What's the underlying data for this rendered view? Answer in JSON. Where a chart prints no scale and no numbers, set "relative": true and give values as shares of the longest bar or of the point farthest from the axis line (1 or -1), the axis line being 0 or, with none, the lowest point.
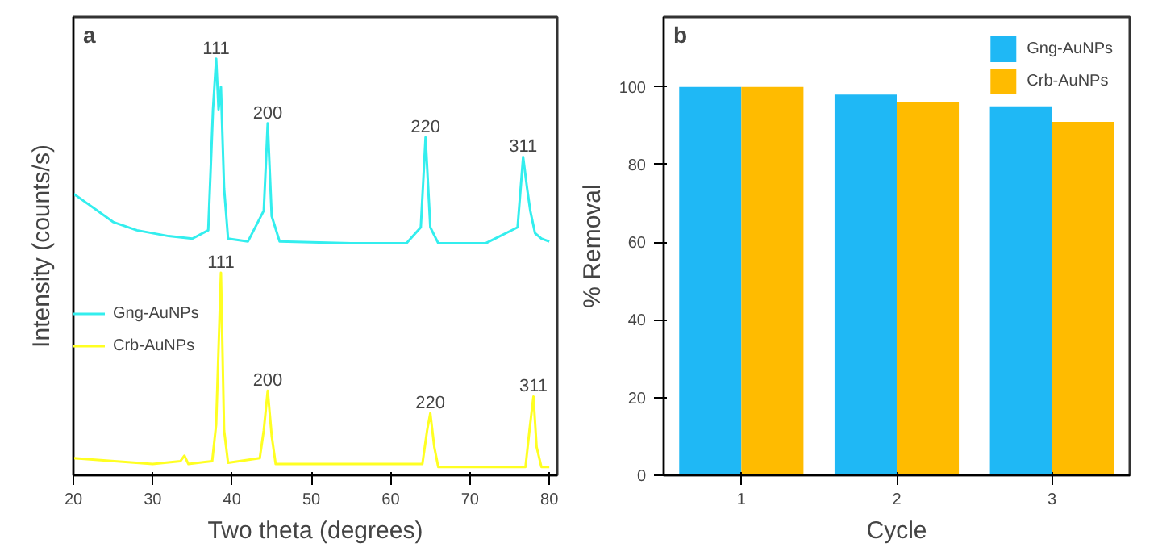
{
  "chart_data": [
    {
      "type": "line",
      "title": "a",
      "xlabel": "Two theta (degrees)",
      "ylabel": "Intensity (counts/s)",
      "relative": true,
      "xlim": [
        20,
        81
      ],
      "xticks": [
        20,
        30,
        40,
        50,
        60,
        70,
        80
      ],
      "tick_labels": "x",
      "grid": false,
      "legend": "left",
      "marker": "none",
      "line_style": "solid",
      "series": [
        {
          "name": "Gng-AuNPs",
          "color": "#33eeee",
          "x": [
            20,
            22,
            25,
            28,
            32,
            35,
            37,
            37.3,
            37.6,
            38,
            38.3,
            38.6,
            39,
            39.5,
            42,
            44,
            44.5,
            45,
            46,
            55,
            62,
            63.8,
            64.4,
            65,
            66,
            72,
            76,
            76.7,
            77.2,
            77.6,
            78.2,
            79,
            80
          ],
          "values": [
            0.676,
            0.649,
            0.608,
            0.588,
            0.574,
            0.568,
            0.588,
            0.73,
            0.878,
            1.0,
            0.878,
            0.932,
            0.689,
            0.568,
            0.561,
            0.635,
            0.845,
            0.622,
            0.561,
            0.557,
            0.557,
            0.595,
            0.811,
            0.595,
            0.557,
            0.557,
            0.595,
            0.764,
            0.689,
            0.635,
            0.581,
            0.568,
            0.561
          ]
        },
        {
          "name": "Crb-AuNPs",
          "color": "#ffff22",
          "x": [
            20,
            30,
            33.5,
            34,
            34.5,
            37.5,
            38,
            38.6,
            39,
            39.5,
            43.5,
            44,
            44.5,
            45,
            45.5,
            64,
            64.6,
            65,
            65.5,
            66,
            77,
            77.5,
            78,
            78.4,
            79,
            80
          ],
          "values": [
            0.041,
            0.027,
            0.034,
            0.047,
            0.027,
            0.034,
            0.122,
            0.486,
            0.108,
            0.03,
            0.041,
            0.108,
            0.203,
            0.095,
            0.027,
            0.027,
            0.108,
            0.149,
            0.068,
            0.02,
            0.02,
            0.108,
            0.189,
            0.068,
            0.02,
            0.02
          ]
        }
      ],
      "annotations": [
        {
          "text": "111",
          "x": 38,
          "y": 1.0
        },
        {
          "text": "200",
          "x": 44.5,
          "y": 0.845
        },
        {
          "text": "220",
          "x": 64.4,
          "y": 0.811
        },
        {
          "text": "311",
          "x": 76.7,
          "y": 0.764
        },
        {
          "text": "111",
          "x": 38.6,
          "y": 0.486
        },
        {
          "text": "200",
          "x": 44.5,
          "y": 0.203
        },
        {
          "text": "220",
          "x": 65,
          "y": 0.149
        },
        {
          "text": "311",
          "x": 78,
          "y": 0.189
        }
      ]
    },
    {
      "type": "bar",
      "title": "b",
      "xlabel": "Cycle",
      "ylabel": "% Removal",
      "categories": [
        "1",
        "2",
        "3"
      ],
      "ylim": [
        0,
        118
      ],
      "yticks": [
        0,
        20,
        40,
        60,
        80,
        100
      ],
      "grid": false,
      "legend": "top right",
      "series": [
        {
          "name": "Gng-AuNPs",
          "color": "#1fb8f5",
          "values": [
            100,
            98,
            95
          ]
        },
        {
          "name": "Crb-AuNPs",
          "color": "#ffbb00",
          "values": [
            100,
            96,
            91
          ]
        }
      ]
    }
  ]
}
